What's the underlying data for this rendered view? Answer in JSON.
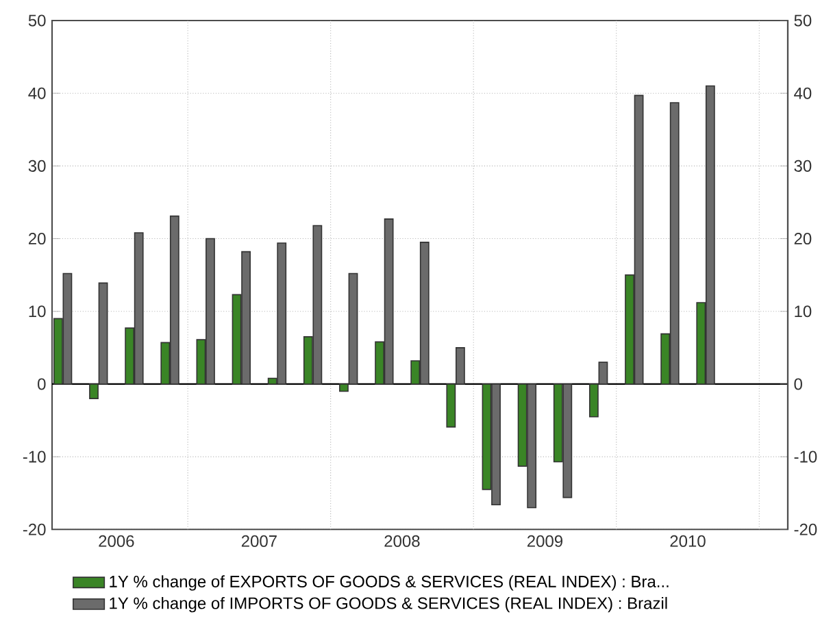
{
  "chart_data": {
    "type": "bar",
    "x": [
      2006.125,
      2006.375,
      2006.625,
      2006.875,
      2007.125,
      2007.375,
      2007.625,
      2007.875,
      2008.125,
      2008.375,
      2008.625,
      2008.875,
      2009.125,
      2009.375,
      2009.625,
      2009.875,
      2010.125,
      2010.375,
      2010.625
    ],
    "series": [
      {
        "name": "1Y % change of EXPORTS OF GOODS & SERVICES (REAL INDEX) : Bra...",
        "color": "#3a8526",
        "values": [
          9,
          -2,
          7.7,
          5.7,
          6.1,
          12.3,
          0.8,
          6.5,
          -1,
          5.8,
          3.2,
          -5.9,
          -14.5,
          -11.3,
          -10.7,
          -4.5,
          15,
          6.9,
          11.2
        ]
      },
      {
        "name": "1Y % change of IMPORTS OF GOODS & SERVICES (REAL INDEX) : Brazil",
        "color": "#6b6b6b",
        "values": [
          15.2,
          13.9,
          20.8,
          23.1,
          20,
          18.2,
          19.4,
          21.8,
          15.2,
          22.7,
          19.5,
          5,
          -16.6,
          -17,
          -15.6,
          3,
          39.7,
          38.7,
          41
        ]
      }
    ],
    "xlim": [
      2006.05,
      2011.2
    ],
    "xticks": [
      {
        "value": 2006.5,
        "label": "2006"
      },
      {
        "value": 2007.5,
        "label": "2007"
      },
      {
        "value": 2008.5,
        "label": "2008"
      },
      {
        "value": 2009.5,
        "label": "2009"
      },
      {
        "value": 2010.5,
        "label": "2010"
      }
    ],
    "ylim": [
      -20,
      50
    ],
    "yticks": [
      -20,
      -10,
      0,
      10,
      20,
      30,
      40,
      50
    ],
    "y2lim": [
      -20,
      50
    ],
    "y2ticks": [
      -20,
      -10,
      0,
      10,
      20,
      30,
      40,
      50
    ],
    "ref_lines": [
      {
        "axis": "x",
        "value": 2007,
        "line_style": "dotted",
        "color": "#b0b0b0"
      },
      {
        "axis": "x",
        "value": 2008,
        "line_style": "dotted",
        "color": "#b0b0b0"
      },
      {
        "axis": "x",
        "value": 2009,
        "line_style": "dotted",
        "color": "#b0b0b0"
      },
      {
        "axis": "x",
        "value": 2010,
        "line_style": "dotted",
        "color": "#b0b0b0"
      },
      {
        "axis": "x",
        "value": 2011,
        "line_style": "dotted",
        "color": "#b0b0b0"
      }
    ],
    "grid": "y",
    "legend": "bottom"
  }
}
